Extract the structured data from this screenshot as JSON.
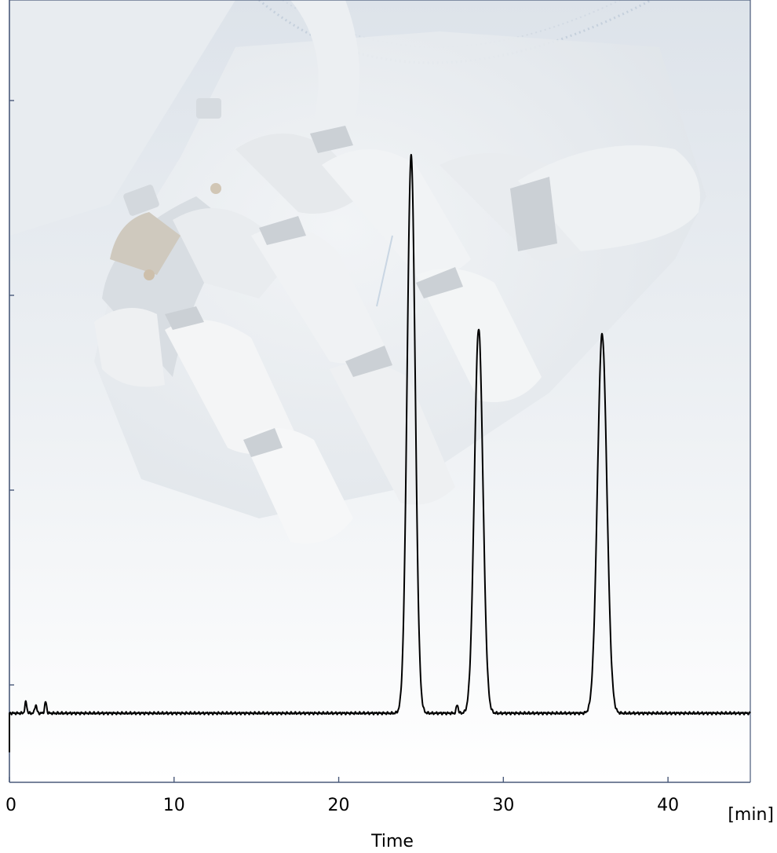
{
  "chart_data": {
    "type": "line",
    "title": "",
    "xlabel": "Time",
    "x_unit": "[min]",
    "ylabel": "",
    "xlim": [
      0,
      45
    ],
    "ylim": [
      -0.12,
      1.15
    ],
    "x_ticks": [
      0,
      10,
      20,
      30,
      40
    ],
    "x_tick_labels": [
      "0",
      "10",
      "20",
      "30",
      "40"
    ],
    "y_tick_count": 4,
    "grid": false,
    "legend": "none",
    "colors": {
      "trace": "#000000",
      "axis": "#4a5a7a",
      "background": "#ffffff",
      "watermark": "#e4e9ee"
    },
    "background_image": "robot-hand-watermark",
    "baseline": 0,
    "series": [
      {
        "peaks": [
          {
            "time": 24.4,
            "height": 1.0
          },
          {
            "time": 28.5,
            "height": 0.69
          },
          {
            "time": 36.0,
            "height": 0.68
          }
        ],
        "minor_peaks": [
          {
            "time": 1.0,
            "height": 0.02
          },
          {
            "time": 1.6,
            "height": 0.015
          },
          {
            "time": 2.2,
            "height": 0.02
          },
          {
            "time": 27.2,
            "height": 0.015
          }
        ],
        "start_dip": -0.07
      }
    ]
  }
}
